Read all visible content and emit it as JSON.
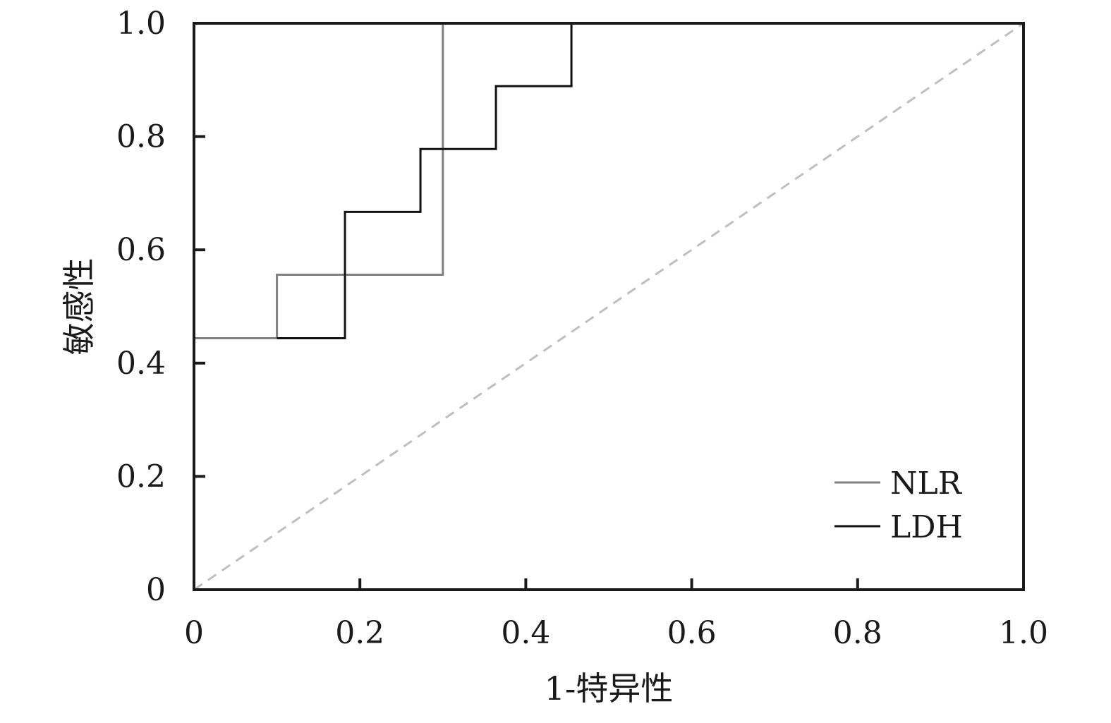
{
  "chart_data": {
    "type": "line",
    "xlabel": "1-特异性",
    "ylabel": "敏感性",
    "xlim": [
      0,
      1.0
    ],
    "ylim": [
      0,
      1.0
    ],
    "x_ticks": [
      "0",
      "0.2",
      "0.4",
      "0.6",
      "0.8",
      "1.0"
    ],
    "y_ticks": [
      "0",
      "0.2",
      "0.4",
      "0.6",
      "0.8",
      "1.0"
    ],
    "grid": false,
    "legend_position": "bottom-right",
    "reference_line": {
      "style": "dashed",
      "color": "#bfbfbf",
      "from": [
        0,
        0
      ],
      "to": [
        1,
        1
      ]
    },
    "series": [
      {
        "name": "NLR",
        "color": "#808080",
        "step": true,
        "points": [
          [
            0,
            0.444
          ],
          [
            0.1,
            0.444
          ],
          [
            0.1,
            0.556
          ],
          [
            0.3,
            0.556
          ],
          [
            0.3,
            1.0
          ]
        ]
      },
      {
        "name": "LDH",
        "color": "#111111",
        "step": true,
        "points": [
          [
            0.1,
            0.444
          ],
          [
            0.182,
            0.444
          ],
          [
            0.182,
            0.667
          ],
          [
            0.273,
            0.667
          ],
          [
            0.273,
            0.778
          ],
          [
            0.364,
            0.778
          ],
          [
            0.364,
            0.889
          ],
          [
            0.455,
            0.889
          ],
          [
            0.455,
            1.0
          ]
        ]
      }
    ]
  }
}
